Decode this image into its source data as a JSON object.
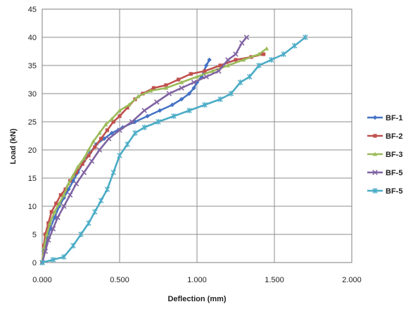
{
  "chart_data": {
    "type": "line",
    "xlabel": "Deflection (mm)",
    "ylabel": "Load (kN)",
    "xlim": [
      0,
      2
    ],
    "ylim": [
      0,
      45
    ],
    "x_ticks": [
      "0.000",
      "0.500",
      "1.000",
      "1.500",
      "2.000"
    ],
    "x_tick_values": [
      0,
      0.5,
      1,
      1.5,
      2
    ],
    "y_ticks": [
      "0",
      "5",
      "10",
      "15",
      "20",
      "25",
      "30",
      "35",
      "40",
      "45"
    ],
    "y_tick_values": [
      0,
      5,
      10,
      15,
      20,
      25,
      30,
      35,
      40,
      45
    ],
    "grid": true,
    "legend_position": "right",
    "series": [
      {
        "name": "BF-1",
        "color": "#4472C4",
        "marker": "diamond",
        "x": [
          0,
          0.01,
          0.03,
          0.05,
          0.08,
          0.11,
          0.14,
          0.17,
          0.2,
          0.23,
          0.27,
          0.31,
          0.35,
          0.4,
          0.45,
          0.52,
          0.6,
          0.68,
          0.76,
          0.84,
          0.9,
          0.95,
          0.98,
          1.0,
          1.03,
          1.06,
          1.08
        ],
        "y": [
          0,
          2,
          4,
          6,
          8,
          10,
          11.5,
          13,
          14.5,
          16,
          18,
          19.5,
          21,
          22,
          23,
          24,
          25,
          26,
          27,
          28,
          29,
          30,
          31,
          32,
          33,
          35,
          36
        ]
      },
      {
        "name": "BF-2",
        "color": "#C0504D",
        "marker": "square",
        "x": [
          0,
          0.01,
          0.02,
          0.04,
          0.06,
          0.09,
          0.12,
          0.15,
          0.18,
          0.22,
          0.26,
          0.3,
          0.34,
          0.38,
          0.42,
          0.46,
          0.5,
          0.55,
          0.6,
          0.65,
          0.72,
          0.8,
          0.88,
          0.96,
          1.05,
          1.15,
          1.25,
          1.35,
          1.43
        ],
        "y": [
          0,
          3,
          5,
          7,
          9,
          10.5,
          12,
          13,
          14.5,
          16,
          17.5,
          19,
          20.5,
          22,
          23.5,
          25,
          26,
          27.5,
          29,
          30,
          31,
          31.5,
          32.5,
          33.5,
          34,
          35,
          36,
          36.5,
          37
        ]
      },
      {
        "name": "BF-3",
        "color": "#9BBB59",
        "marker": "triangle",
        "x": [
          0,
          0.01,
          0.03,
          0.05,
          0.08,
          0.11,
          0.14,
          0.17,
          0.2,
          0.23,
          0.27,
          0.3,
          0.33,
          0.37,
          0.41,
          0.45,
          0.5,
          0.56,
          0.62,
          0.7,
          0.8,
          0.9,
          1.0,
          1.1,
          1.2,
          1.3,
          1.4,
          1.45
        ],
        "y": [
          0,
          2.5,
          5,
          7,
          9,
          10.5,
          12,
          14,
          15.5,
          17,
          18.5,
          20,
          21.5,
          23,
          24.5,
          25.5,
          27,
          28,
          29.5,
          30.5,
          31,
          32,
          33,
          34,
          35,
          36,
          37,
          38
        ]
      },
      {
        "name": "BF-5",
        "color": "#8064A2",
        "marker": "x",
        "x": [
          0,
          0.02,
          0.04,
          0.07,
          0.1,
          0.14,
          0.18,
          0.22,
          0.27,
          0.32,
          0.37,
          0.43,
          0.5,
          0.58,
          0.66,
          0.74,
          0.82,
          0.9,
          0.98,
          1.06,
          1.14,
          1.2,
          1.25,
          1.29,
          1.32
        ],
        "y": [
          0,
          2,
          4,
          6,
          8,
          10,
          12,
          14,
          16,
          18,
          20,
          22,
          23.5,
          25,
          27,
          28.5,
          30,
          31,
          32,
          33,
          34,
          36,
          37,
          39,
          40
        ]
      },
      {
        "name": "BF-5",
        "color": "#4BACC6",
        "marker": "star",
        "x": [
          0,
          0.07,
          0.14,
          0.2,
          0.25,
          0.3,
          0.34,
          0.38,
          0.42,
          0.46,
          0.5,
          0.55,
          0.6,
          0.66,
          0.75,
          0.85,
          0.95,
          1.05,
          1.15,
          1.22,
          1.28,
          1.34,
          1.4,
          1.48,
          1.56,
          1.63,
          1.7
        ],
        "y": [
          0,
          0.5,
          1,
          3,
          5,
          7,
          9,
          11,
          13,
          16,
          19,
          21,
          23,
          24,
          25,
          26,
          27,
          28,
          29,
          30,
          32,
          33,
          35,
          36,
          37,
          38.5,
          40
        ]
      }
    ]
  }
}
